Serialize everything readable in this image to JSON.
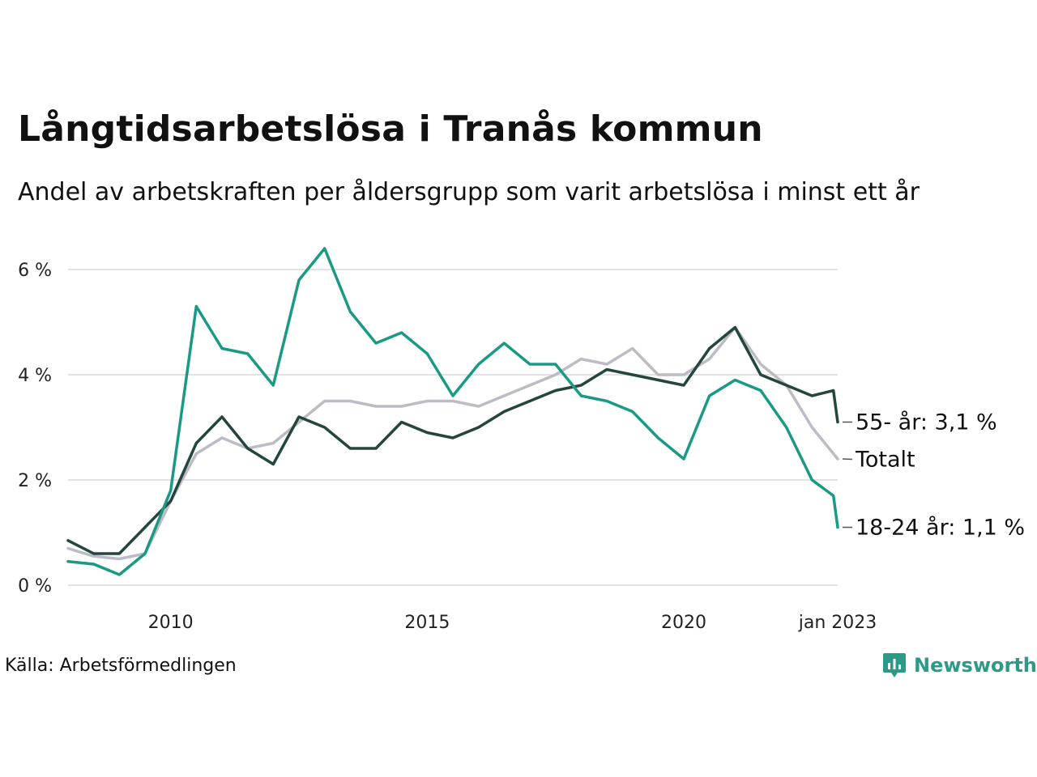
{
  "header": {
    "title": "Långtidsarbetslösa i Tranås kommun",
    "subtitle": "Andel av arbetskraften per åldersgrupp som varit arbetslösa i minst ett år"
  },
  "footer": {
    "source": "Källa: Arbetsförmedlingen",
    "brand": "Newsworthy",
    "brand_icon": "newsworthy-logo-icon",
    "brand_color": "#2c9a86"
  },
  "chart_data": {
    "type": "line",
    "title": "Långtidsarbetslösa i Tranås kommun",
    "subtitle": "Andel av arbetskraften per åldersgrupp som varit arbetslösa i minst ett år",
    "xlabel": "",
    "ylabel": "",
    "x_range": [
      "2008-01",
      "2023-01"
    ],
    "ylim": [
      0,
      6.5
    ],
    "y_ticks": [
      {
        "value": 0,
        "label": "0 %"
      },
      {
        "value": 2,
        "label": "2 %"
      },
      {
        "value": 4,
        "label": "4 %"
      },
      {
        "value": 6,
        "label": "6 %"
      }
    ],
    "x_ticks": [
      {
        "x": "2010-01",
        "label": "2010"
      },
      {
        "x": "2015-01",
        "label": "2015"
      },
      {
        "x": "2020-01",
        "label": "2020"
      },
      {
        "x": "2023-01",
        "label": "jan 2023"
      }
    ],
    "grid": "horizontal",
    "legend": "end-labels at right",
    "series": [
      {
        "name": "Totalt",
        "end_label": "Totalt",
        "color": "#bcbcc6",
        "points": [
          [
            "2008-01",
            0.7
          ],
          [
            "2008-07",
            0.55
          ],
          [
            "2009-01",
            0.5
          ],
          [
            "2009-07",
            0.6
          ],
          [
            "2010-01",
            1.6
          ],
          [
            "2010-07",
            2.5
          ],
          [
            "2011-01",
            2.8
          ],
          [
            "2011-07",
            2.6
          ],
          [
            "2012-01",
            2.7
          ],
          [
            "2012-07",
            3.1
          ],
          [
            "2013-01",
            3.5
          ],
          [
            "2013-07",
            3.5
          ],
          [
            "2014-01",
            3.4
          ],
          [
            "2014-07",
            3.4
          ],
          [
            "2015-01",
            3.5
          ],
          [
            "2015-07",
            3.5
          ],
          [
            "2016-01",
            3.4
          ],
          [
            "2016-07",
            3.6
          ],
          [
            "2017-01",
            3.8
          ],
          [
            "2017-07",
            4.0
          ],
          [
            "2018-01",
            4.3
          ],
          [
            "2018-07",
            4.2
          ],
          [
            "2019-01",
            4.5
          ],
          [
            "2019-07",
            4.0
          ],
          [
            "2020-01",
            4.0
          ],
          [
            "2020-07",
            4.3
          ],
          [
            "2021-01",
            4.9
          ],
          [
            "2021-07",
            4.2
          ],
          [
            "2022-01",
            3.8
          ],
          [
            "2022-07",
            3.0
          ],
          [
            "2023-01",
            2.4
          ]
        ]
      },
      {
        "name": "55- år",
        "end_label": "55- år: 3,1 %",
        "color": "#25453f",
        "points": [
          [
            "2008-01",
            0.85
          ],
          [
            "2008-07",
            0.6
          ],
          [
            "2009-01",
            0.6
          ],
          [
            "2009-07",
            1.1
          ],
          [
            "2010-01",
            1.6
          ],
          [
            "2010-07",
            2.7
          ],
          [
            "2011-01",
            3.2
          ],
          [
            "2011-07",
            2.6
          ],
          [
            "2012-01",
            2.3
          ],
          [
            "2012-07",
            3.2
          ],
          [
            "2013-01",
            3.0
          ],
          [
            "2013-07",
            2.6
          ],
          [
            "2014-01",
            2.6
          ],
          [
            "2014-07",
            3.1
          ],
          [
            "2015-01",
            2.9
          ],
          [
            "2015-07",
            2.8
          ],
          [
            "2016-01",
            3.0
          ],
          [
            "2016-07",
            3.3
          ],
          [
            "2017-01",
            3.5
          ],
          [
            "2017-07",
            3.7
          ],
          [
            "2018-01",
            3.8
          ],
          [
            "2018-07",
            4.1
          ],
          [
            "2019-01",
            4.0
          ],
          [
            "2019-07",
            3.9
          ],
          [
            "2020-01",
            3.8
          ],
          [
            "2020-07",
            4.5
          ],
          [
            "2021-01",
            4.9
          ],
          [
            "2021-07",
            4.0
          ],
          [
            "2022-01",
            3.8
          ],
          [
            "2022-07",
            3.6
          ],
          [
            "2022-12",
            3.7
          ],
          [
            "2023-01",
            3.1
          ]
        ]
      },
      {
        "name": "18-24 år",
        "end_label": "18-24 år: 1,1 %",
        "color": "#1a9a85",
        "points": [
          [
            "2008-01",
            0.45
          ],
          [
            "2008-07",
            0.4
          ],
          [
            "2009-01",
            0.2
          ],
          [
            "2009-07",
            0.6
          ],
          [
            "2010-01",
            1.8
          ],
          [
            "2010-07",
            5.3
          ],
          [
            "2011-01",
            4.5
          ],
          [
            "2011-07",
            4.4
          ],
          [
            "2012-01",
            3.8
          ],
          [
            "2012-07",
            5.8
          ],
          [
            "2013-01",
            6.4
          ],
          [
            "2013-07",
            5.2
          ],
          [
            "2014-01",
            4.6
          ],
          [
            "2014-07",
            4.8
          ],
          [
            "2015-01",
            4.4
          ],
          [
            "2015-07",
            3.6
          ],
          [
            "2016-01",
            4.2
          ],
          [
            "2016-07",
            4.6
          ],
          [
            "2017-01",
            4.2
          ],
          [
            "2017-07",
            4.2
          ],
          [
            "2018-01",
            3.6
          ],
          [
            "2018-07",
            3.5
          ],
          [
            "2019-01",
            3.3
          ],
          [
            "2019-07",
            2.8
          ],
          [
            "2020-01",
            2.4
          ],
          [
            "2020-07",
            3.6
          ],
          [
            "2021-01",
            3.9
          ],
          [
            "2021-07",
            3.7
          ],
          [
            "2022-01",
            3.0
          ],
          [
            "2022-07",
            2.0
          ],
          [
            "2022-12",
            1.7
          ],
          [
            "2023-01",
            1.1
          ]
        ]
      }
    ]
  }
}
